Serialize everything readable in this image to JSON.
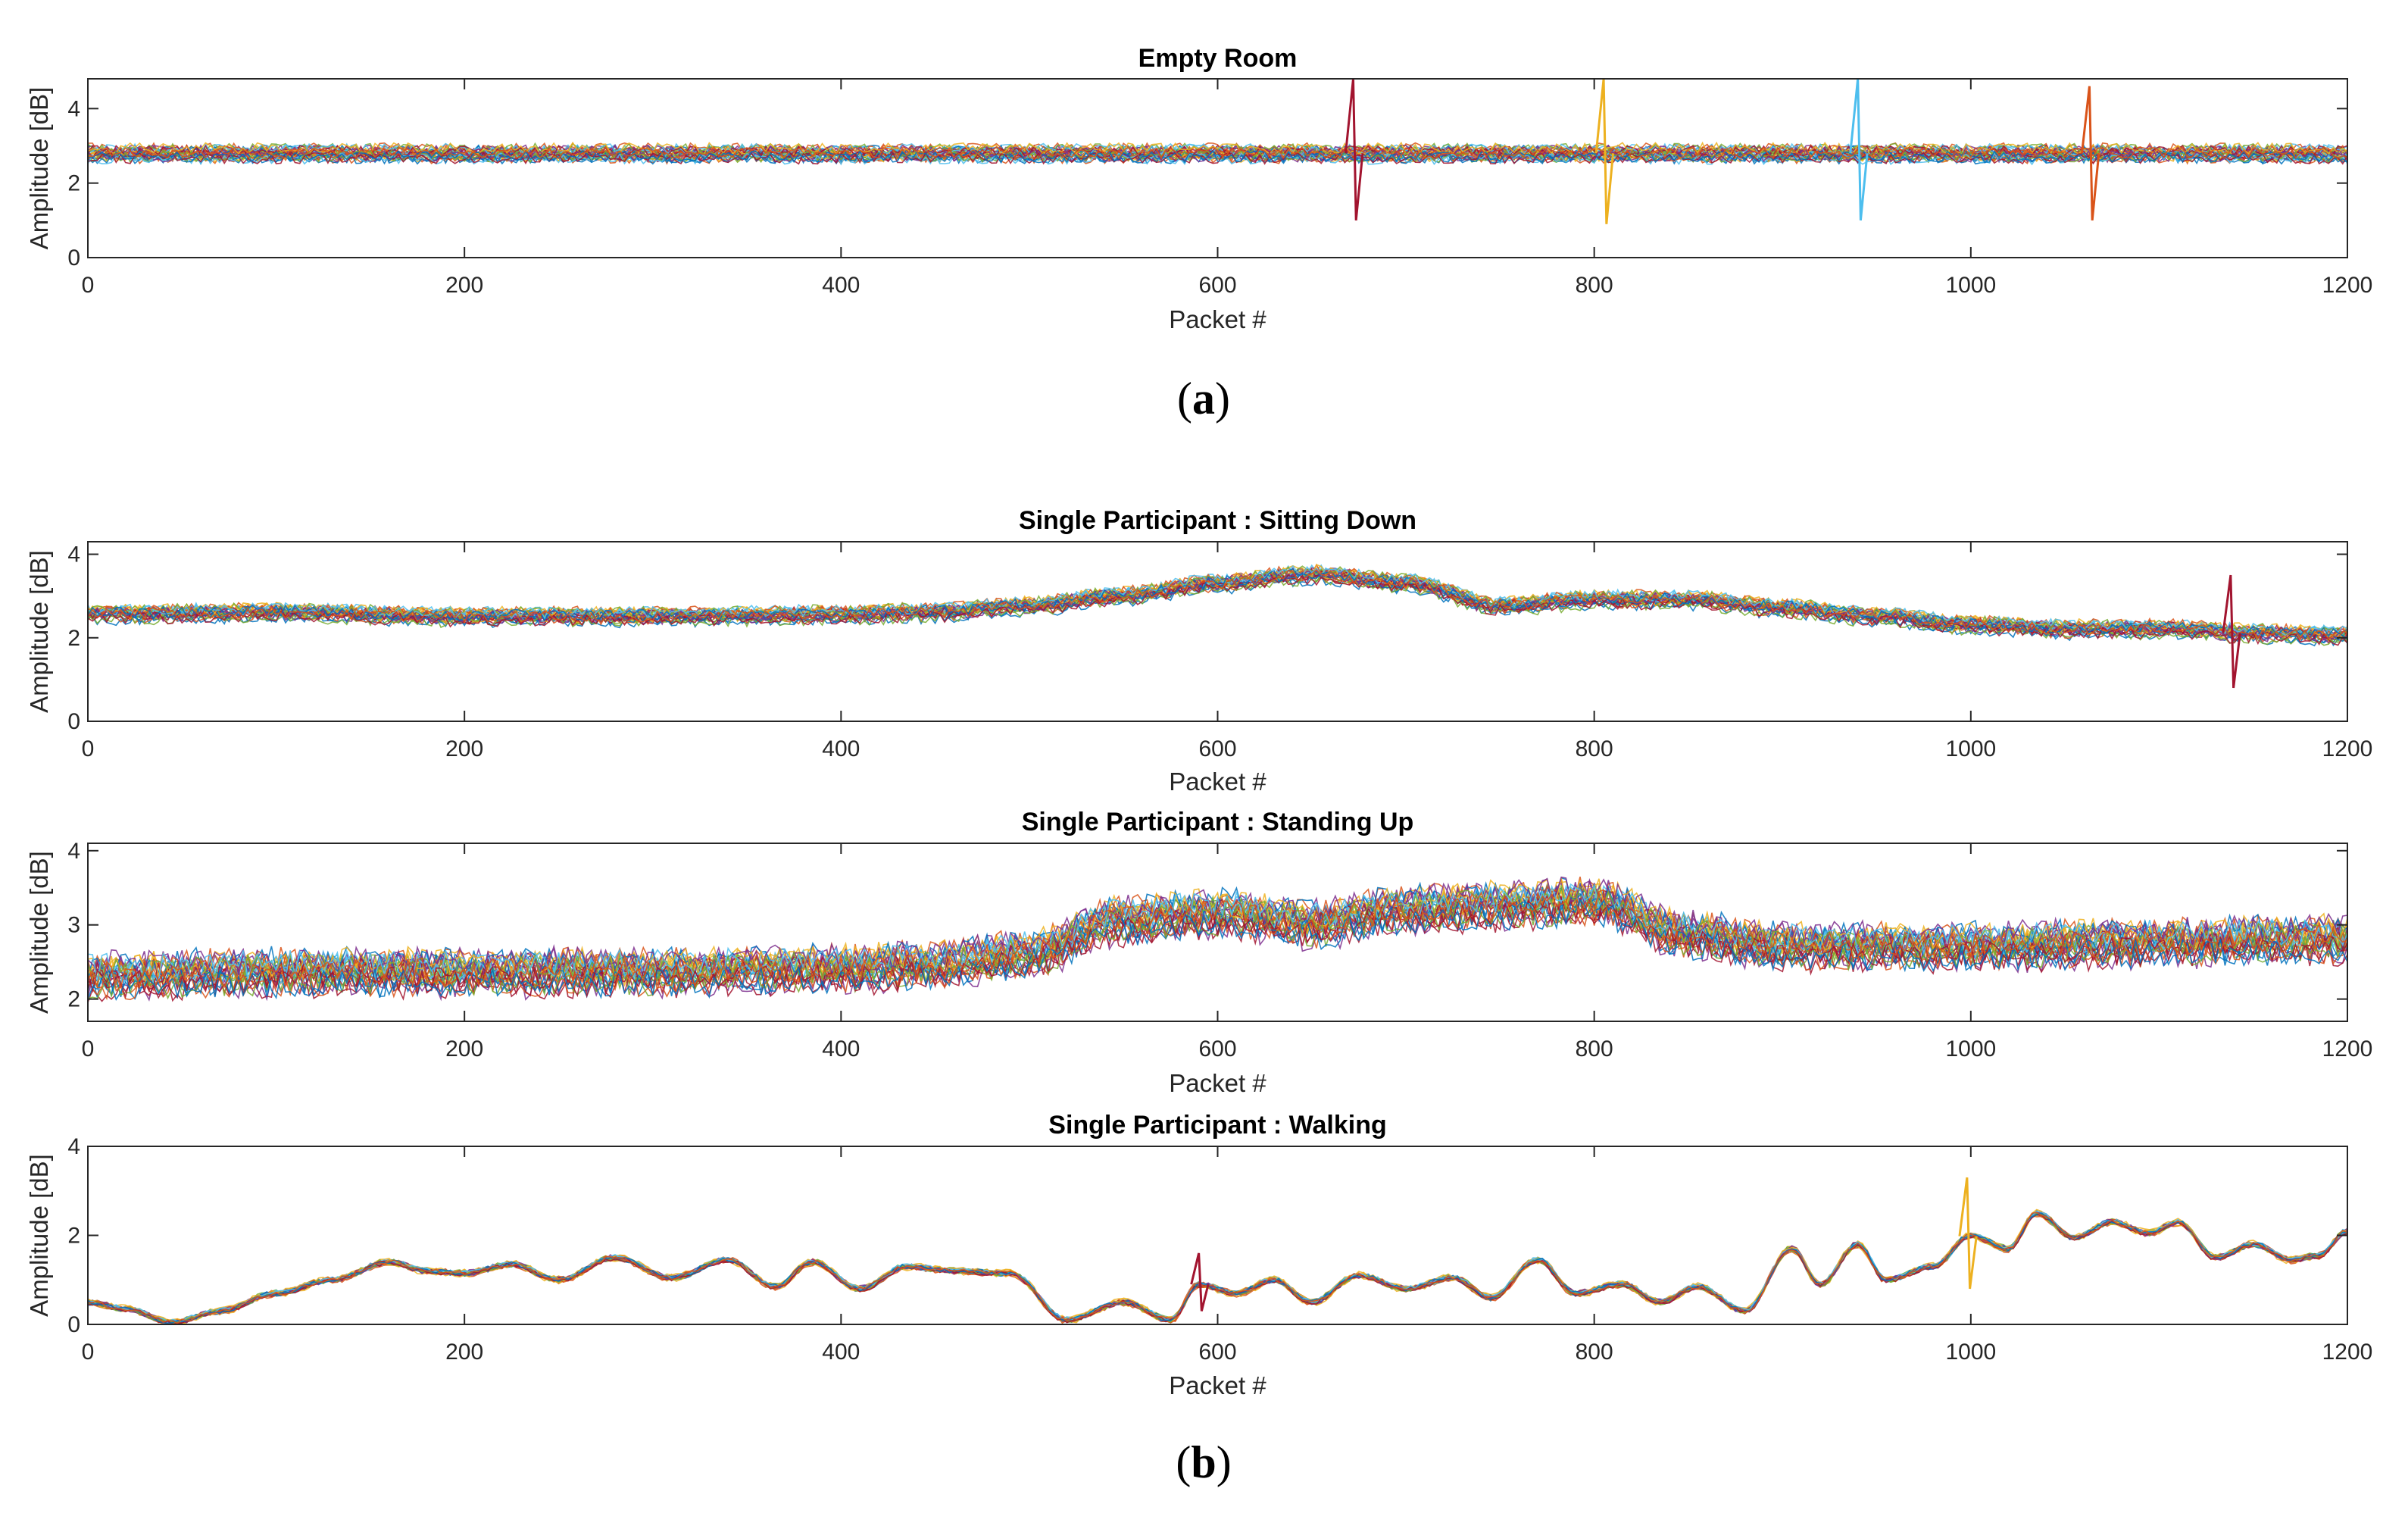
{
  "panels_label_a": "(a)",
  "panels_label_b": "(b)",
  "colors": [
    "#0072BD",
    "#D95319",
    "#EDB120",
    "#7E2F8E",
    "#77AC30",
    "#4DBEEE",
    "#A2142F"
  ],
  "chart_data": [
    {
      "type": "line",
      "title": "Empty Room",
      "xlabel": "Packet #",
      "ylabel": "Amplitude [dB]",
      "xlim": [
        0,
        1200
      ],
      "ylim": [
        0,
        4.8
      ],
      "xticks": [
        0,
        200,
        400,
        600,
        800,
        1000,
        1200
      ],
      "yticks": [
        0,
        2,
        4
      ],
      "xtick_labels": [
        "0",
        "200",
        "400",
        "600",
        "800",
        "1000",
        "1200"
      ],
      "ytick_labels": [
        "0",
        "2",
        "4"
      ],
      "series_count": 30,
      "trend": {
        "x": [
          0,
          200,
          400,
          600,
          800,
          1000,
          1200
        ],
        "y": [
          2.8,
          2.8,
          2.8,
          2.8,
          2.8,
          2.8,
          2.8
        ]
      },
      "spread": 0.3,
      "noise": 0.15,
      "spikes": [
        {
          "x": 672,
          "high": 4.8,
          "low": 1.0
        },
        {
          "x": 805,
          "high": 4.8,
          "low": 0.9
        },
        {
          "x": 940,
          "high": 4.8,
          "low": 1.0
        },
        {
          "x": 1063,
          "high": 4.6,
          "low": 1.0
        }
      ]
    },
    {
      "type": "line",
      "title": "Single Participant : Sitting Down",
      "xlabel": "Packet #",
      "ylabel": "Amplitude [dB]",
      "xlim": [
        0,
        1200
      ],
      "ylim": [
        0,
        4.3
      ],
      "xticks": [
        0,
        200,
        400,
        600,
        800,
        1000,
        1200
      ],
      "yticks": [
        0,
        2,
        4
      ],
      "xtick_labels": [
        "0",
        "200",
        "400",
        "600",
        "800",
        "1000",
        "1200"
      ],
      "ytick_labels": [
        "0",
        "2",
        "4"
      ],
      "series_count": 30,
      "trend": {
        "x": [
          0,
          100,
          200,
          300,
          400,
          450,
          500,
          550,
          600,
          650,
          700,
          750,
          800,
          850,
          900,
          950,
          1000,
          1050,
          1100,
          1150,
          1200
        ],
        "y": [
          2.55,
          2.6,
          2.5,
          2.5,
          2.55,
          2.6,
          2.75,
          3.0,
          3.3,
          3.5,
          3.3,
          2.75,
          2.9,
          2.9,
          2.7,
          2.5,
          2.3,
          2.2,
          2.2,
          2.1,
          2.05
        ]
      },
      "spread": 0.25,
      "noise": 0.14,
      "spikes": [
        {
          "x": 1138,
          "high": 3.5,
          "low": 0.8
        }
      ]
    },
    {
      "type": "line",
      "title": "Single Participant : Standing Up",
      "xlabel": "Packet #",
      "ylabel": "Amplitude [dB]",
      "xlim": [
        0,
        1200
      ],
      "ylim": [
        1.7,
        4.1
      ],
      "xticks": [
        0,
        200,
        400,
        600,
        800,
        1000,
        1200
      ],
      "yticks": [
        2,
        3,
        4
      ],
      "xtick_labels": [
        "0",
        "200",
        "400",
        "600",
        "800",
        "1000",
        "1200"
      ],
      "ytick_labels": [
        "2",
        "3",
        "4"
      ],
      "series_count": 30,
      "trend": {
        "x": [
          0,
          100,
          200,
          300,
          400,
          450,
          500,
          550,
          600,
          650,
          700,
          750,
          800,
          850,
          900,
          1000,
          1100,
          1200
        ],
        "y": [
          2.3,
          2.35,
          2.35,
          2.35,
          2.4,
          2.45,
          2.6,
          3.05,
          3.15,
          3.0,
          3.2,
          3.25,
          3.3,
          2.85,
          2.7,
          2.7,
          2.75,
          2.8
        ]
      },
      "spread": 0.35,
      "noise": 0.2,
      "spikes": []
    },
    {
      "type": "line",
      "title": "Single Participant : Walking",
      "xlabel": "Packet #",
      "ylabel": "Amplitude [dB]",
      "xlim": [
        0,
        1200
      ],
      "ylim": [
        0,
        4
      ],
      "xticks": [
        0,
        200,
        400,
        600,
        800,
        1000,
        1200
      ],
      "yticks": [
        0,
        2,
        4
      ],
      "xtick_labels": [
        "0",
        "200",
        "400",
        "600",
        "800",
        "1000",
        "1200"
      ],
      "ytick_labels": [
        "0",
        "2",
        "4"
      ],
      "series_count": 30,
      "trend": {
        "x": [
          0,
          20,
          45,
          70,
          100,
          130,
          160,
          180,
          200,
          225,
          250,
          280,
          310,
          340,
          365,
          385,
          410,
          435,
          460,
          490,
          520,
          550,
          575,
          590,
          610,
          630,
          650,
          675,
          700,
          725,
          745,
          770,
          790,
          815,
          835,
          855,
          880,
          905,
          920,
          940,
          955,
          980,
          1000,
          1020,
          1035,
          1055,
          1075,
          1095,
          1110,
          1130,
          1150,
          1170,
          1185,
          1200
        ],
        "y": [
          0.5,
          0.35,
          0.05,
          0.3,
          0.7,
          1.0,
          1.4,
          1.2,
          1.15,
          1.35,
          1.0,
          1.5,
          1.05,
          1.45,
          0.85,
          1.4,
          0.8,
          1.3,
          1.2,
          1.15,
          0.1,
          0.5,
          0.1,
          0.9,
          0.7,
          1.0,
          0.5,
          1.1,
          0.8,
          1.05,
          0.6,
          1.45,
          0.7,
          0.9,
          0.5,
          0.85,
          0.3,
          1.7,
          0.9,
          1.8,
          1.0,
          1.3,
          2.0,
          1.7,
          2.5,
          1.95,
          2.3,
          2.05,
          2.3,
          1.5,
          1.8,
          1.45,
          1.55,
          2.1
        ]
      },
      "spread": 0.15,
      "noise": 0.05,
      "spikes": [
        {
          "x": 590,
          "high": 1.6,
          "low": 0.3
        },
        {
          "x": 998,
          "high": 3.3,
          "low": 0.8
        }
      ]
    }
  ]
}
